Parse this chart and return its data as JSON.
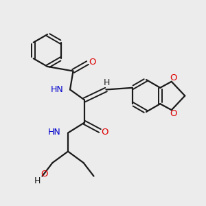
{
  "background_color": "#ececec",
  "bond_color": "#1a1a1a",
  "nitrogen_color": "#0000cc",
  "oxygen_color": "#dd0000",
  "hydrogen_color": "#1a1a1a",
  "figsize": [
    3.0,
    3.0
  ],
  "dpi": 100,
  "xlim": [
    0,
    10
  ],
  "ylim": [
    0,
    10
  ]
}
